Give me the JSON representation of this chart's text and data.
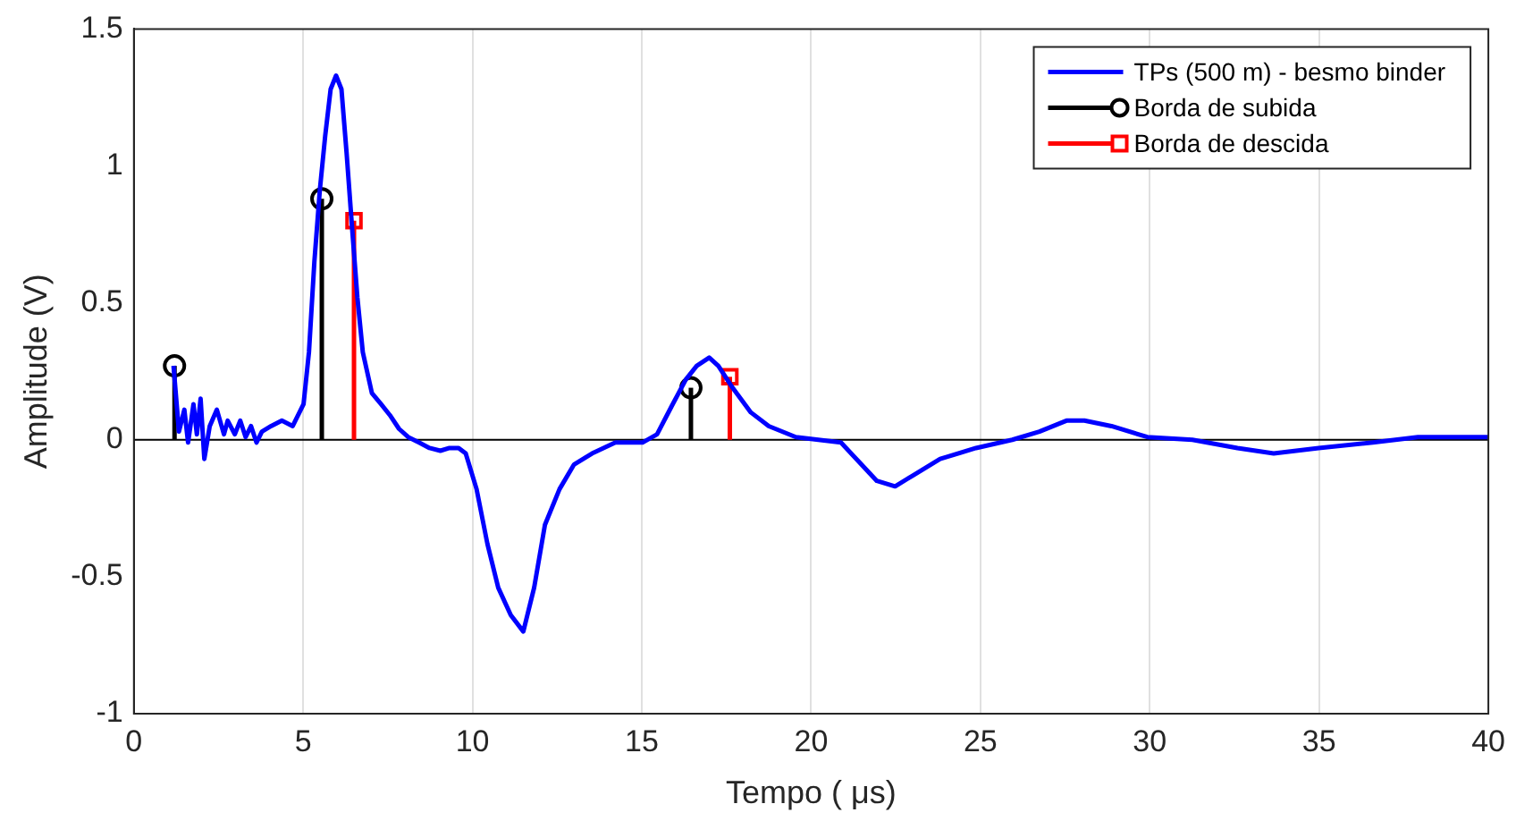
{
  "chart_data": {
    "type": "line",
    "xlabel": "Tempo ( μs)",
    "ylabel": "Amplitude (V)",
    "xlim": [
      0,
      40
    ],
    "xticks": [
      0,
      5,
      10,
      15,
      20,
      25,
      30,
      35,
      40
    ],
    "ylim": [
      -1,
      1.5
    ],
    "yticks": [
      -1,
      -0.5,
      0,
      0.5,
      1,
      1.5
    ],
    "grid": "x",
    "legend": "top right",
    "ref_lines": [
      {
        "axis": "y",
        "value": 0,
        "color": "#000000"
      }
    ],
    "series": [
      {
        "name": "TPs (500 m) - besmo binder",
        "color": "#0000ff",
        "marker": "none",
        "x": [
          1.17,
          1.33,
          1.49,
          1.6,
          1.76,
          1.86,
          1.97,
          2.08,
          2.24,
          2.45,
          2.66,
          2.77,
          2.98,
          3.14,
          3.3,
          3.46,
          3.62,
          3.78,
          4.05,
          4.37,
          4.69,
          5.01,
          5.17,
          5.33,
          5.49,
          5.65,
          5.81,
          5.97,
          6.13,
          6.28,
          6.44,
          6.6,
          6.76,
          7.03,
          7.3,
          7.56,
          7.83,
          8.1,
          8.42,
          8.73,
          9.05,
          9.32,
          9.59,
          9.8,
          10.12,
          10.44,
          10.76,
          11.13,
          11.5,
          11.82,
          12.14,
          12.57,
          13.0,
          13.53,
          14.22,
          15.02,
          15.45,
          15.87,
          16.3,
          16.62,
          16.99,
          17.26,
          17.68,
          18.22,
          18.75,
          19.55,
          20.88,
          21.41,
          21.94,
          22.48,
          23.01,
          23.81,
          24.87,
          25.94,
          26.74,
          27.54,
          28.07,
          28.87,
          29.93,
          31.26,
          32.59,
          33.66,
          34.99,
          36.59,
          37.92,
          38.99,
          40
        ],
        "values": [
          0.27,
          0.03,
          0.11,
          -0.01,
          0.13,
          0.02,
          0.15,
          -0.07,
          0.05,
          0.11,
          0.02,
          0.07,
          0.02,
          0.07,
          0.01,
          0.05,
          -0.01,
          0.03,
          0.05,
          0.07,
          0.05,
          0.13,
          0.32,
          0.65,
          0.91,
          1.11,
          1.28,
          1.33,
          1.28,
          1.05,
          0.78,
          0.52,
          0.32,
          0.17,
          0.13,
          0.09,
          0.04,
          0.01,
          -0.01,
          -0.03,
          -0.04,
          -0.03,
          -0.03,
          -0.05,
          -0.18,
          -0.38,
          -0.54,
          -0.64,
          -0.7,
          -0.54,
          -0.31,
          -0.18,
          -0.09,
          -0.05,
          -0.01,
          -0.01,
          0.02,
          0.12,
          0.22,
          0.27,
          0.3,
          0.27,
          0.19,
          0.1,
          0.05,
          0.01,
          -0.01,
          -0.08,
          -0.15,
          -0.17,
          -0.13,
          -0.07,
          -0.03,
          0,
          0.03,
          0.07,
          0.07,
          0.05,
          0.01,
          0,
          -0.03,
          -0.05,
          -0.03,
          -0.01,
          0.01,
          0.01,
          0.01
        ]
      },
      {
        "name": "Borda de subida",
        "type": "lollipop",
        "color": "#000000",
        "marker": "circle",
        "x": [
          1.2,
          5.55,
          16.45
        ],
        "values": [
          0.27,
          0.88,
          0.19
        ]
      },
      {
        "name": "Borda de descida",
        "type": "lollipop",
        "color": "#ff0000",
        "marker": "square",
        "x": [
          6.5,
          17.6
        ],
        "values": [
          0.8,
          0.23
        ]
      }
    ]
  }
}
